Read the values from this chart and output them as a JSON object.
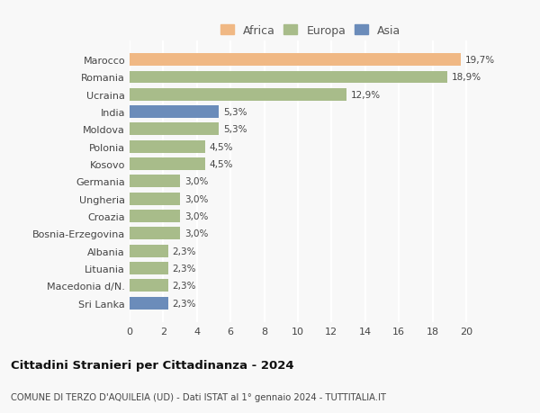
{
  "categories": [
    "Sri Lanka",
    "Macedonia d/N.",
    "Lituania",
    "Albania",
    "Bosnia-Erzegovina",
    "Croazia",
    "Ungheria",
    "Germania",
    "Kosovo",
    "Polonia",
    "Moldova",
    "India",
    "Ucraina",
    "Romania",
    "Marocco"
  ],
  "values": [
    2.3,
    2.3,
    2.3,
    2.3,
    3.0,
    3.0,
    3.0,
    3.0,
    4.5,
    4.5,
    5.3,
    5.3,
    12.9,
    18.9,
    19.7
  ],
  "labels": [
    "2,3%",
    "2,3%",
    "2,3%",
    "2,3%",
    "3,0%",
    "3,0%",
    "3,0%",
    "3,0%",
    "4,5%",
    "4,5%",
    "5,3%",
    "5,3%",
    "12,9%",
    "18,9%",
    "19,7%"
  ],
  "colors": [
    "#6b8cba",
    "#a8bc8a",
    "#a8bc8a",
    "#a8bc8a",
    "#a8bc8a",
    "#a8bc8a",
    "#a8bc8a",
    "#a8bc8a",
    "#a8bc8a",
    "#a8bc8a",
    "#a8bc8a",
    "#6b8cba",
    "#a8bc8a",
    "#a8bc8a",
    "#f0b884"
  ],
  "legend_labels": [
    "Africa",
    "Europa",
    "Asia"
  ],
  "legend_colors": [
    "#f0b884",
    "#a8bc8a",
    "#6b8cba"
  ],
  "title": "Cittadini Stranieri per Cittadinanza - 2024",
  "subtitle": "COMUNE DI TERZO D'AQUILEIA (UD) - Dati ISTAT al 1° gennaio 2024 - TUTTITALIA.IT",
  "xlim": [
    0,
    21.5
  ],
  "xticks": [
    0,
    2,
    4,
    6,
    8,
    10,
    12,
    14,
    16,
    18,
    20
  ],
  "background_color": "#f8f8f8",
  "grid_color": "#ffffff",
  "bar_height": 0.72
}
